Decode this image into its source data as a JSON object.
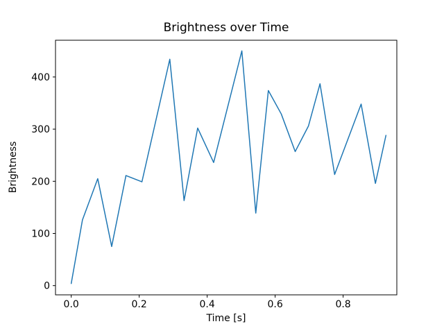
{
  "figure": {
    "background": "#ffffff"
  },
  "chart_data": {
    "type": "line",
    "title": "Brightness over Time",
    "xlabel": "Time [s]",
    "ylabel": "Brightness",
    "x": [
      0.0,
      0.033,
      0.078,
      0.119,
      0.161,
      0.208,
      0.29,
      0.332,
      0.372,
      0.419,
      0.502,
      0.543,
      0.58,
      0.618,
      0.659,
      0.698,
      0.732,
      0.775,
      0.853,
      0.895,
      0.926
    ],
    "y": [
      4,
      126,
      205,
      75,
      211,
      199,
      434,
      163,
      302,
      236,
      450,
      139,
      374,
      329,
      257,
      306,
      387,
      213,
      348,
      196,
      288
    ],
    "xlim": [
      -0.0463,
      0.958
    ],
    "ylim": [
      -17.7,
      470.4
    ],
    "xticks": [
      0.0,
      0.2,
      0.4,
      0.6,
      0.8
    ],
    "xtick_labels": [
      "0.0",
      "0.2",
      "0.4",
      "0.6",
      "0.8"
    ],
    "yticks": [
      0,
      100,
      200,
      300,
      400
    ],
    "ytick_labels": [
      "0",
      "100",
      "200",
      "300",
      "400"
    ],
    "line_color": "#1f77b4",
    "line_width": 1.5,
    "spine_color": "#000000",
    "grid": false,
    "legend": null
  }
}
